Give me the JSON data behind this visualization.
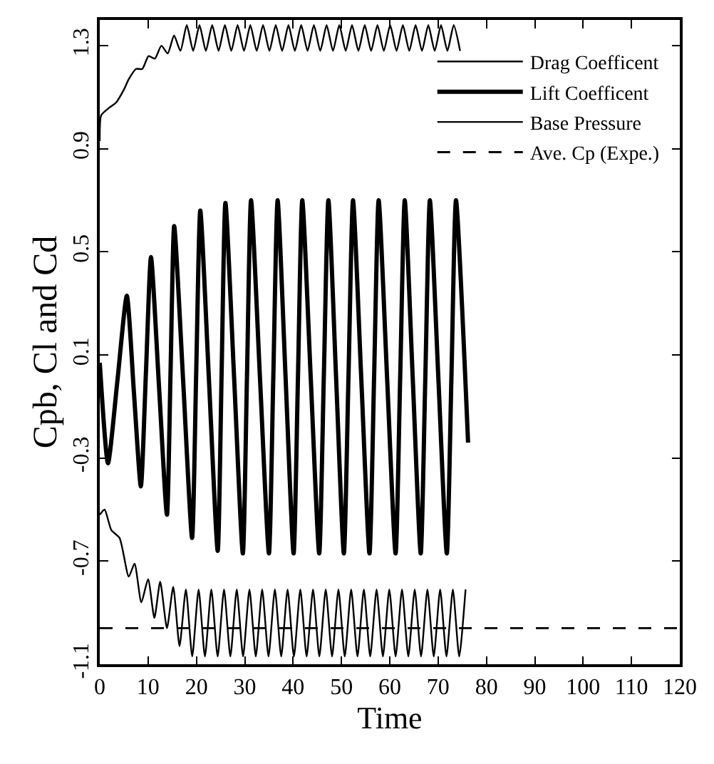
{
  "chart_data": {
    "type": "line",
    "xlabel": "Time",
    "ylabel": "Cpb, Cl and Cd",
    "xlim": [
      0,
      120
    ],
    "ylim": [
      -1.1,
      1.4
    ],
    "xticks": [
      0,
      10,
      20,
      30,
      40,
      50,
      60,
      70,
      80,
      90,
      100,
      110,
      120
    ],
    "yticks": [
      -1.1,
      -0.7,
      -0.3,
      0.1,
      0.5,
      0.9,
      1.3
    ],
    "legend": "top right",
    "marker": "none",
    "series": [
      {
        "name": "Drag Coefficent",
        "color": "#000000",
        "line_style": "solid",
        "x": [
          0,
          0.3,
          2.0,
          3.4,
          5.0,
          6.0,
          7.5,
          8.8,
          10.1,
          11.4,
          12.75,
          14.06,
          15.37,
          16.69,
          18.0,
          19.32,
          20.63,
          21.95,
          23.26,
          24.58,
          25.89,
          27.21,
          28.52,
          29.84,
          31.15,
          32.47,
          33.78,
          35.1,
          36.41,
          37.73,
          39.04,
          40.36,
          41.67,
          42.99,
          44.3,
          45.62,
          46.93,
          48.25,
          49.56,
          50.88,
          52.19,
          53.51,
          54.82,
          56.14,
          57.45,
          58.77,
          60.08,
          61.4,
          62.71,
          64.03,
          65.34,
          66.66,
          67.97,
          69.29,
          70.6,
          71.92,
          73.23,
          74.55
        ],
        "values": [
          0.93,
          1.03,
          1.06,
          1.08,
          1.13,
          1.17,
          1.21,
          1.21,
          1.26,
          1.25,
          1.3,
          1.27,
          1.34,
          1.28,
          1.38,
          1.28,
          1.38,
          1.28,
          1.38,
          1.28,
          1.38,
          1.28,
          1.38,
          1.28,
          1.38,
          1.28,
          1.38,
          1.28,
          1.38,
          1.28,
          1.38,
          1.28,
          1.38,
          1.28,
          1.38,
          1.28,
          1.38,
          1.28,
          1.38,
          1.28,
          1.38,
          1.28,
          1.38,
          1.28,
          1.38,
          1.28,
          1.38,
          1.28,
          1.38,
          1.28,
          1.38,
          1.28,
          1.38,
          1.28,
          1.38,
          1.28,
          1.38,
          1.28
        ]
      },
      {
        "name": "Lift Coefficent",
        "color": "#000000",
        "line_style": "solid",
        "x": [
          0,
          1.7,
          3.65,
          5.6,
          7.05,
          8.5,
          9.55,
          10.6,
          12.25,
          13.9,
          14.65,
          15.4,
          17.25,
          19.1,
          19.95,
          20.8,
          22.6,
          24.4,
          25.2,
          26.0,
          27.8,
          29.6,
          30.45,
          31.3,
          33.15,
          35.0,
          35.9,
          36.8,
          38.45,
          40.1,
          41.0,
          41.9,
          43.65,
          45.4,
          46.35,
          47.3,
          48.9,
          50.5,
          51.45,
          52.4,
          54.1,
          55.8,
          56.75,
          57.7,
          59.45,
          61.2,
          62.15,
          63.1,
          64.75,
          66.4,
          67.35,
          68.3,
          70.05,
          71.8,
          72.75,
          73.7,
          76.2
        ],
        "values": [
          0.07,
          -0.32,
          0.0,
          0.33,
          -0.04,
          -0.41,
          0.03,
          0.48,
          -0.02,
          -0.52,
          0.04,
          0.6,
          0.0,
          -0.61,
          0.03,
          0.66,
          0.0,
          -0.66,
          0.02,
          0.69,
          0.01,
          -0.67,
          0.01,
          0.7,
          0.01,
          -0.67,
          0.01,
          0.7,
          0.01,
          -0.67,
          0.01,
          0.7,
          0.01,
          -0.67,
          0.01,
          0.7,
          0.01,
          -0.67,
          0.01,
          0.7,
          0.01,
          -0.67,
          0.01,
          0.7,
          0.01,
          -0.67,
          0.01,
          0.7,
          0.01,
          -0.67,
          0.01,
          0.7,
          0.01,
          -0.67,
          0.01,
          0.7,
          -0.24
        ]
      },
      {
        "name": "Base Pressure",
        "color": "#000000",
        "line_style": "solid",
        "x": [
          0,
          1.0,
          2.4,
          4.1,
          6.0,
          7.2,
          8.6,
          10.0,
          11.3,
          12.5,
          13.9,
          15.2,
          16.5,
          17.82,
          19.13,
          20.45,
          21.76,
          23.08,
          24.39,
          25.71,
          27.02,
          28.34,
          29.65,
          30.97,
          32.28,
          33.6,
          34.91,
          36.23,
          37.54,
          38.86,
          40.17,
          41.49,
          42.8,
          44.12,
          45.43,
          46.75,
          48.06,
          49.38,
          50.69,
          52.01,
          53.32,
          54.64,
          55.95,
          57.27,
          58.58,
          59.9,
          61.21,
          62.53,
          63.84,
          65.16,
          66.47,
          67.79,
          69.1,
          70.42,
          71.73,
          73.05,
          74.36,
          75.68
        ],
        "values": [
          -0.52,
          -0.5,
          -0.58,
          -0.61,
          -0.76,
          -0.71,
          -0.86,
          -0.77,
          -0.92,
          -0.78,
          -0.96,
          -0.8,
          -1.03,
          -0.81,
          -1.07,
          -0.81,
          -1.07,
          -0.81,
          -1.07,
          -0.81,
          -1.07,
          -0.81,
          -1.07,
          -0.81,
          -1.07,
          -0.81,
          -1.07,
          -0.81,
          -1.07,
          -0.81,
          -1.07,
          -0.81,
          -1.07,
          -0.81,
          -1.07,
          -0.81,
          -1.07,
          -0.81,
          -1.07,
          -0.81,
          -1.07,
          -0.81,
          -1.07,
          -0.81,
          -1.07,
          -0.81,
          -1.07,
          -0.81,
          -1.07,
          -0.81,
          -1.07,
          -0.81,
          -1.07,
          -0.81,
          -1.07,
          -0.81,
          -1.07,
          -0.81
        ]
      },
      {
        "name": "Ave. Cp (Expe.)",
        "color": "#000000",
        "line_style": "dashed",
        "x": [
          0,
          120
        ],
        "values": [
          -0.96,
          -0.96
        ]
      }
    ]
  }
}
